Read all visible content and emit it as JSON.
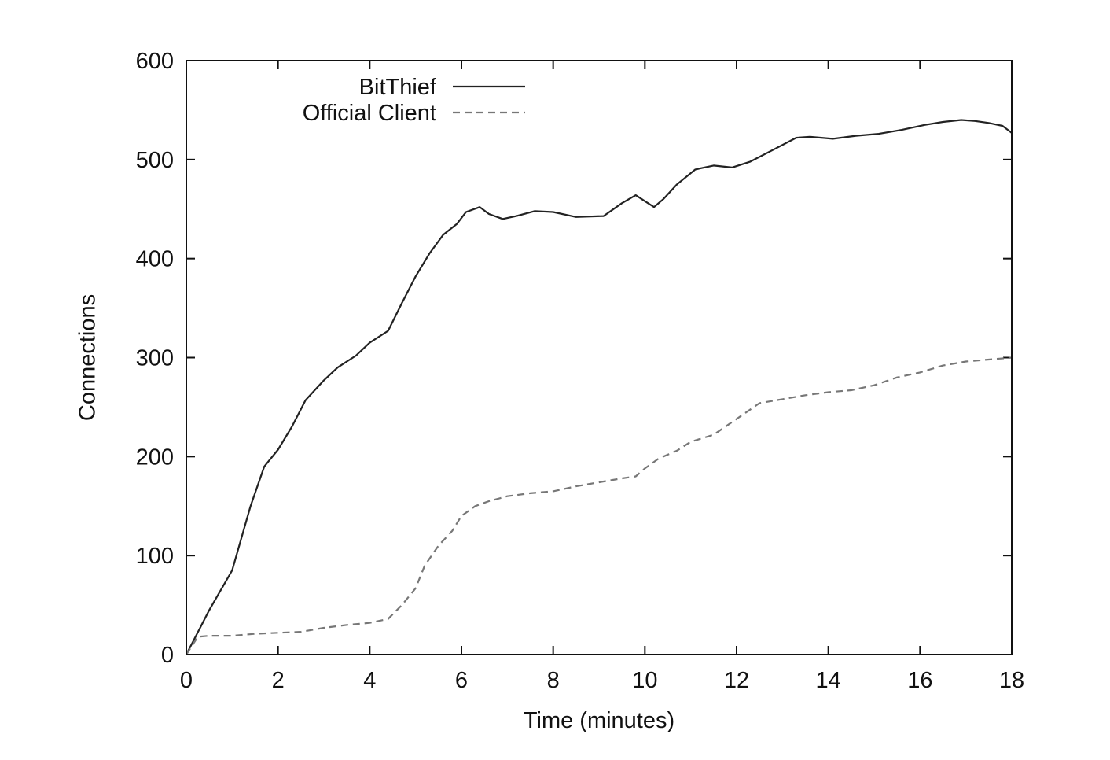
{
  "chart_data": {
    "type": "line",
    "title": "",
    "xlabel": "Time (minutes)",
    "ylabel": "Connections",
    "xlim": [
      0,
      18
    ],
    "ylim": [
      0,
      600
    ],
    "xticks": [
      0,
      2,
      4,
      6,
      8,
      10,
      12,
      14,
      16,
      18
    ],
    "yticks": [
      0,
      100,
      200,
      300,
      400,
      500,
      600
    ],
    "grid": false,
    "legend_position": "top-left",
    "series": [
      {
        "name": "BitThief",
        "style": "solid",
        "color": "#222222",
        "x": [
          0,
          0.5,
          1,
          1.4,
          1.7,
          2,
          2.3,
          2.6,
          3,
          3.3,
          3.7,
          4,
          4.4,
          4.7,
          5,
          5.3,
          5.6,
          5.9,
          6.1,
          6.4,
          6.6,
          6.9,
          7.2,
          7.6,
          8,
          8.5,
          9.1,
          9.5,
          9.8,
          10,
          10.2,
          10.4,
          10.7,
          11.1,
          11.5,
          11.9,
          12.3,
          12.8,
          13.3,
          13.6,
          14.1,
          14.6,
          15.1,
          15.6,
          16.1,
          16.5,
          16.9,
          17.2,
          17.5,
          17.8,
          18
        ],
        "y": [
          0,
          45,
          85,
          150,
          190,
          207,
          230,
          257,
          277,
          290,
          302,
          315,
          327,
          355,
          382,
          405,
          424,
          435,
          447,
          452,
          445,
          440,
          443,
          448,
          447,
          442,
          443,
          456,
          464,
          458,
          452,
          460,
          475,
          490,
          494,
          492,
          498,
          510,
          522,
          523,
          521,
          524,
          526,
          530,
          535,
          538,
          540,
          539,
          537,
          534,
          527
        ]
      },
      {
        "name": "Official Client",
        "style": "dashed",
        "color": "#777777",
        "x": [
          0,
          0.25,
          0.5,
          1,
          1.5,
          2,
          2.5,
          3,
          3.5,
          4,
          4.4,
          4.7,
          5,
          5.2,
          5.5,
          5.8,
          6,
          6.3,
          6.6,
          7,
          7.5,
          8,
          8.5,
          9,
          9.5,
          9.8,
          10,
          10.3,
          10.7,
          11,
          11.5,
          12,
          12.5,
          13,
          13.5,
          14,
          14.5,
          15,
          15.5,
          16,
          16.5,
          17,
          17.5,
          18
        ],
        "y": [
          0,
          18,
          19,
          19,
          21,
          22,
          23,
          27,
          30,
          32,
          36,
          50,
          67,
          90,
          110,
          125,
          140,
          150,
          155,
          160,
          163,
          165,
          170,
          174,
          178,
          180,
          188,
          198,
          206,
          215,
          222,
          238,
          254,
          258,
          262,
          265,
          267,
          272,
          280,
          285,
          292,
          296,
          298,
          300
        ]
      }
    ]
  }
}
